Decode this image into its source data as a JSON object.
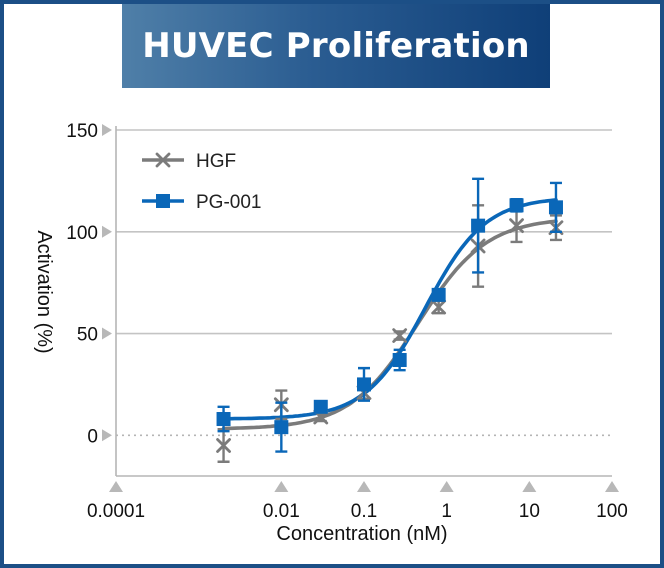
{
  "chart_data": {
    "type": "line",
    "title": "HUVEC Proliferation",
    "xlabel": "Concentration (nM)",
    "ylabel": "Activation (%)",
    "xscale": "log",
    "xlim": [
      0.0001,
      100
    ],
    "ylim": [
      -20,
      150
    ],
    "x_ticks": [
      "0.0001",
      "0.01",
      "0.1",
      "1",
      "10",
      "100"
    ],
    "x_tick_values": [
      0.0001,
      0.01,
      0.1,
      1,
      10,
      100
    ],
    "y_ticks": [
      "0",
      "50",
      "100",
      "150"
    ],
    "y_tick_values": [
      0,
      50,
      100,
      150
    ],
    "legend_position": "top-left",
    "series": [
      {
        "name": "HGF",
        "color": "#7b7b7b",
        "marker": "x",
        "x": [
          0.002,
          0.01,
          0.03,
          0.1,
          0.27,
          0.8,
          2.4,
          7,
          21
        ],
        "values": [
          -5,
          15,
          9,
          21,
          49,
          63,
          93,
          103,
          102
        ],
        "err": [
          8,
          7,
          2,
          3,
          2,
          3,
          20,
          8,
          6
        ],
        "curve": {
          "bottom": 3,
          "top": 107,
          "ec50": 0.45,
          "hill": 1.05
        }
      },
      {
        "name": "PG-001",
        "color": "#0a67b8",
        "marker": "square",
        "x": [
          0.002,
          0.01,
          0.03,
          0.1,
          0.27,
          0.8,
          2.4,
          7,
          21
        ],
        "values": [
          8,
          4,
          14,
          25,
          37,
          69,
          103,
          113,
          112
        ],
        "err": [
          6,
          12,
          2,
          8,
          5,
          2,
          23,
          3,
          12
        ],
        "curve": {
          "bottom": 8,
          "top": 117,
          "ec50": 0.55,
          "hill": 1.2
        }
      }
    ]
  }
}
